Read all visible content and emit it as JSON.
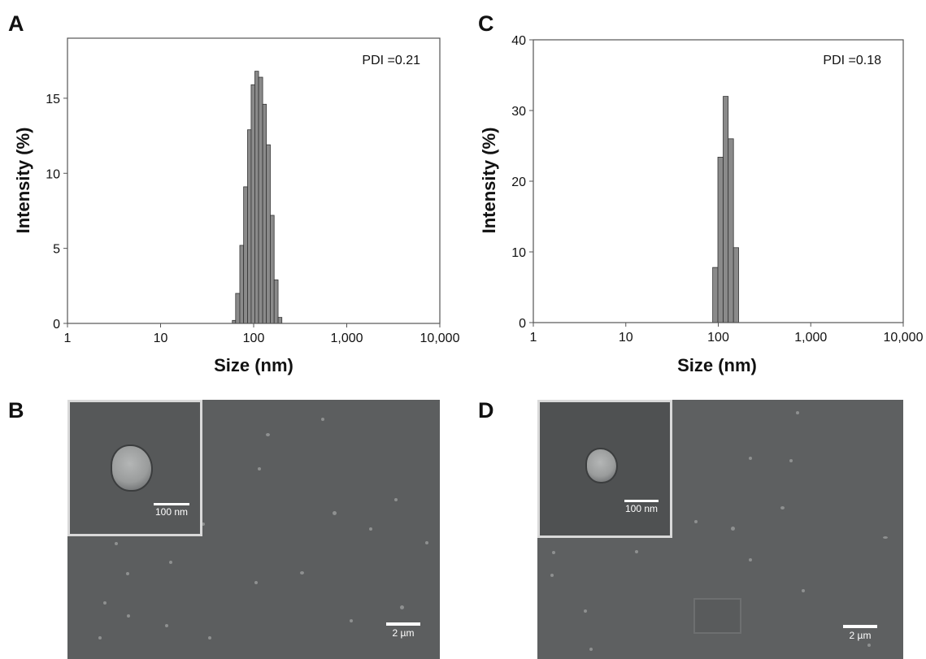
{
  "panels": {
    "A": "A",
    "B": "B",
    "C": "C",
    "D": "D"
  },
  "chart_data": [
    {
      "panel": "A",
      "type": "bar",
      "annotation": "PDI =0.21",
      "xlabel": "Size (nm)",
      "ylabel": "Intensity (%)",
      "xscale": "log",
      "xlim": [
        1,
        10000
      ],
      "ylim": [
        0,
        19
      ],
      "xticks": [
        1,
        10,
        100,
        1000,
        10000
      ],
      "xtick_labels": [
        "1",
        "10",
        "100",
        "1,000",
        "10,000"
      ],
      "yticks": [
        0,
        5,
        10,
        15
      ],
      "ytick_labels": [
        "0",
        "5",
        "10",
        "15"
      ],
      "bar_color": "#8a8a8a",
      "bins": [
        {
          "x0": 59,
          "x1": 64,
          "value": 0.2
        },
        {
          "x0": 64,
          "x1": 71,
          "value": 2.0
        },
        {
          "x0": 71,
          "x1": 78,
          "value": 5.2
        },
        {
          "x0": 78,
          "x1": 86,
          "value": 9.1
        },
        {
          "x0": 86,
          "x1": 94,
          "value": 12.9
        },
        {
          "x0": 94,
          "x1": 103,
          "value": 15.9
        },
        {
          "x0": 103,
          "x1": 113,
          "value": 16.8
        },
        {
          "x0": 113,
          "x1": 125,
          "value": 16.4
        },
        {
          "x0": 125,
          "x1": 137,
          "value": 14.6
        },
        {
          "x0": 137,
          "x1": 151,
          "value": 11.9
        },
        {
          "x0": 151,
          "x1": 166,
          "value": 7.2
        },
        {
          "x0": 166,
          "x1": 183,
          "value": 2.9
        },
        {
          "x0": 183,
          "x1": 201,
          "value": 0.4
        }
      ]
    },
    {
      "panel": "C",
      "type": "bar",
      "annotation": "PDI =0.18",
      "xlabel": "Size (nm)",
      "ylabel": "Intensity (%)",
      "xscale": "log",
      "xlim": [
        1,
        10000
      ],
      "ylim": [
        0,
        40
      ],
      "xticks": [
        1,
        10,
        100,
        1000,
        10000
      ],
      "xtick_labels": [
        "1",
        "10",
        "100",
        "1,000",
        "10,000"
      ],
      "yticks": [
        0,
        10,
        20,
        30,
        40
      ],
      "ytick_labels": [
        "0",
        "10",
        "20",
        "30",
        "40"
      ],
      "bar_color": "#8a8a8a",
      "bins": [
        {
          "x0": 87,
          "x1": 99,
          "value": 7.8
        },
        {
          "x0": 99,
          "x1": 113,
          "value": 23.4
        },
        {
          "x0": 113,
          "x1": 128,
          "value": 32.0
        },
        {
          "x0": 128,
          "x1": 146,
          "value": 26.0
        },
        {
          "x0": 146,
          "x1": 166,
          "value": 10.6
        }
      ]
    }
  ],
  "images": {
    "B": {
      "inset_scale_label": "100 nm",
      "main_scale_label": "2 µm"
    },
    "D": {
      "inset_scale_label": "100 nm",
      "main_scale_label": "2 µm"
    }
  }
}
